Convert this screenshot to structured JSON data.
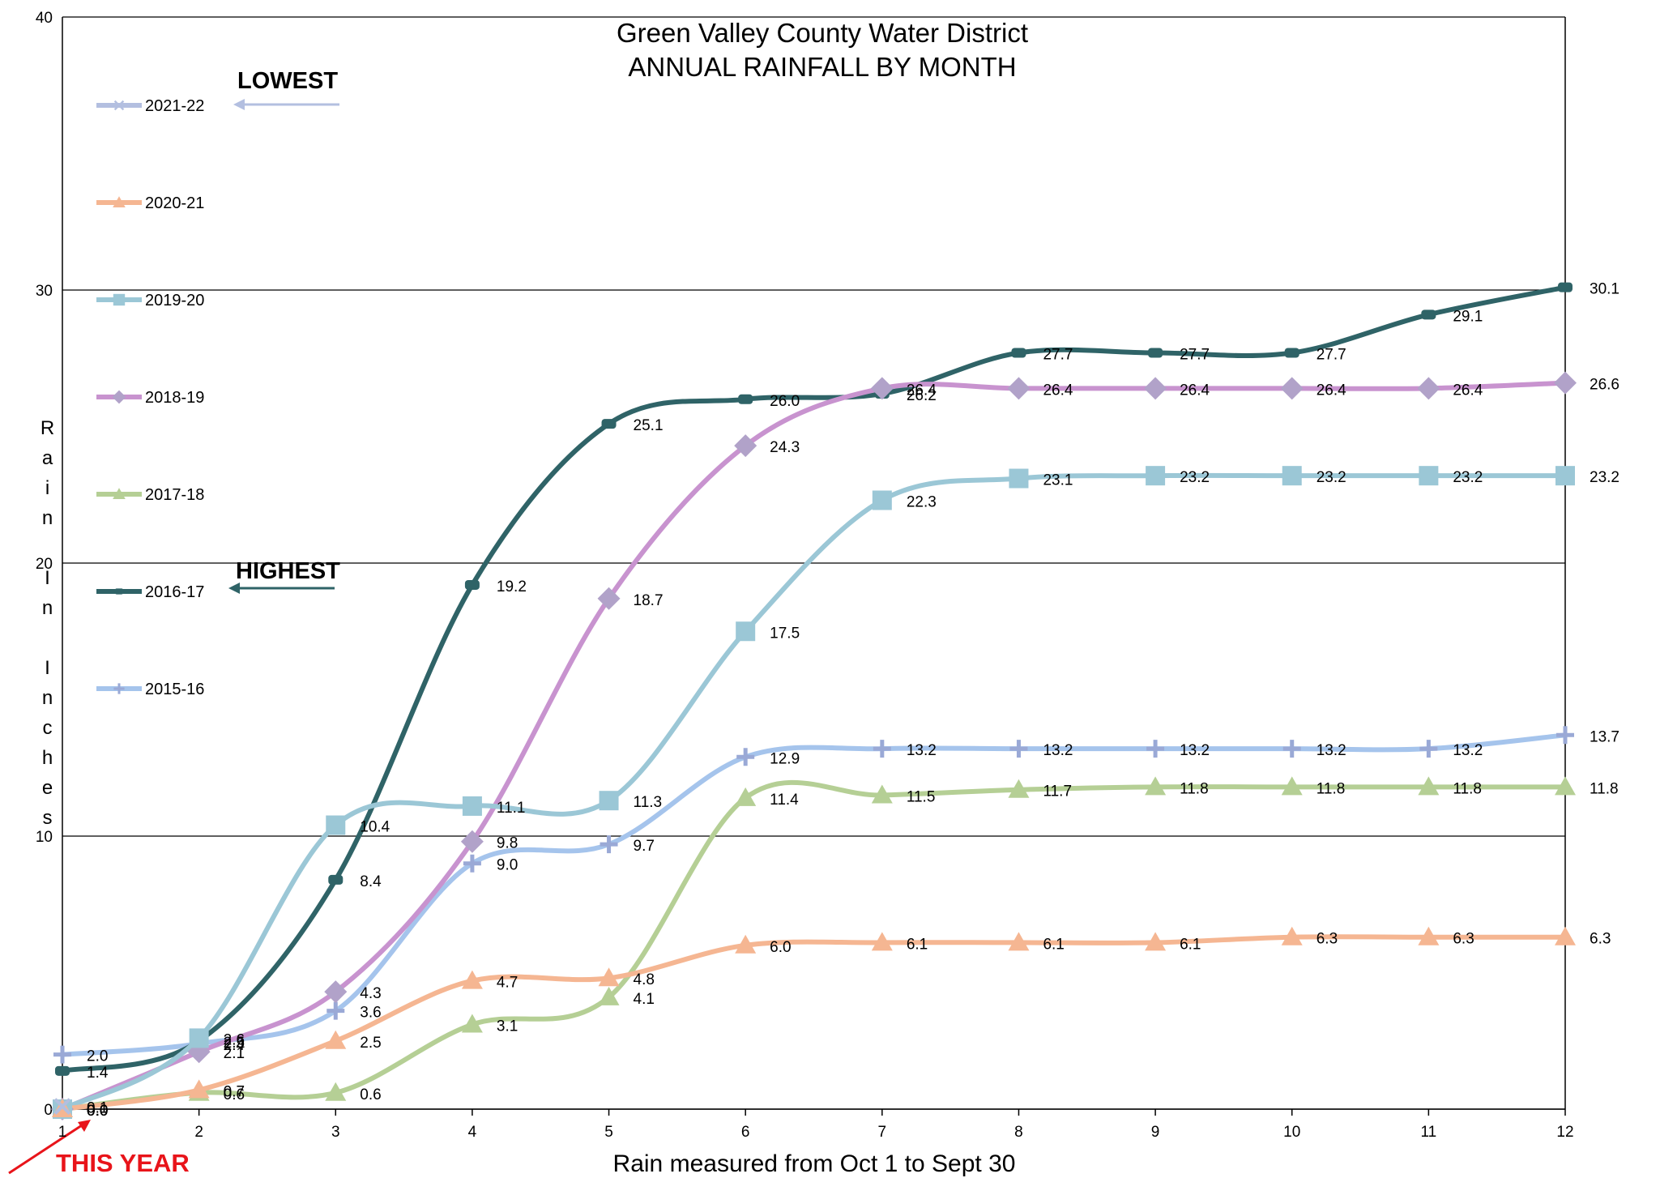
{
  "chart_data": {
    "type": "line",
    "title": [
      "Green Valley County Water District",
      "ANNUAL RAINFALL BY MONTH"
    ],
    "x_label": "Rain measured from Oct 1 to Sept 30",
    "y_label": "Rain In Inches",
    "x": [
      1,
      2,
      3,
      4,
      5,
      6,
      7,
      8,
      9,
      10,
      11,
      12
    ],
    "xlim": [
      1,
      12
    ],
    "xticks": [
      1,
      2,
      3,
      4,
      5,
      6,
      7,
      8,
      9,
      10,
      11,
      12
    ],
    "ylim": [
      0,
      40
    ],
    "yticks": [
      0,
      10,
      20,
      30,
      40
    ],
    "grid": true,
    "smooth": true,
    "annotations": [
      "LOWEST",
      "HIGHEST",
      "THIS YEAR"
    ],
    "series": [
      {
        "name": "2021-22",
        "color": "#b3bfe0",
        "marker": "x",
        "values": [
          0.1,
          null,
          null,
          null,
          null,
          null,
          null,
          null,
          null,
          null,
          null,
          null
        ],
        "value_labels": [
          "0.1",
          null,
          null,
          null,
          null,
          null,
          null,
          null,
          null,
          null,
          null,
          null
        ]
      },
      {
        "name": "2020-21",
        "color": "#f5b692",
        "marker": "triangle",
        "values": [
          0.0,
          0.7,
          2.5,
          4.7,
          4.8,
          6.0,
          6.1,
          6.1,
          6.1,
          6.3,
          6.3,
          6.3
        ],
        "value_labels": [
          "0.0",
          "0.7",
          "2.5",
          "4.7",
          "4.8",
          "6.0",
          "6.1",
          "6.1",
          "6.1",
          "6.3",
          "6.3",
          "6.3"
        ]
      },
      {
        "name": "2019-20",
        "color": "#9bc7d6",
        "marker": "square",
        "values": [
          0.0,
          2.6,
          10.4,
          11.1,
          11.3,
          17.5,
          22.3,
          23.1,
          23.2,
          23.2,
          23.2,
          23.2
        ],
        "value_labels": [
          "0.0",
          "2.6",
          "10.4",
          "11.1",
          "11.3",
          "17.5",
          "22.3",
          "23.1",
          "23.2",
          "23.2",
          "23.2",
          "23.2"
        ]
      },
      {
        "name": "2018-19",
        "color": "#c893cf",
        "marker": "diamond",
        "values": [
          0.0,
          2.1,
          4.3,
          9.8,
          18.7,
          24.3,
          26.4,
          26.4,
          26.4,
          26.4,
          26.4,
          26.6
        ],
        "value_labels": [
          "0.0",
          "2.1",
          "4.3",
          "9.8",
          "18.7",
          "24.3",
          "26.4",
          "26.4",
          "26.4",
          "26.4",
          "26.4",
          "26.6"
        ]
      },
      {
        "name": "2017-18",
        "color": "#b5cf95",
        "marker": "triangle",
        "values": [
          0.0,
          0.6,
          0.6,
          3.1,
          4.1,
          11.4,
          11.5,
          11.7,
          11.8,
          11.8,
          11.8,
          11.8
        ],
        "value_labels": [
          "0.0",
          "0.6",
          "0.6",
          "3.1",
          "4.1",
          "11.4",
          "11.5",
          "11.7",
          "11.8",
          "11.8",
          "11.8",
          "11.8"
        ]
      },
      {
        "name": "2016-17",
        "color": "#2f6367",
        "marker": "pill",
        "values": [
          1.4,
          2.5,
          8.4,
          19.2,
          25.1,
          26.0,
          26.2,
          27.7,
          27.7,
          27.7,
          29.1,
          30.1
        ],
        "value_labels": [
          "1.4",
          "2.5",
          "8.4",
          "19.2",
          "25.1",
          "26.0",
          "26.2",
          "27.7",
          "27.7",
          "27.7",
          "29.1",
          "30.1"
        ]
      },
      {
        "name": "2015-16",
        "color": "#a5c4ec",
        "marker": "plus",
        "values": [
          2.0,
          2.4,
          3.6,
          9.0,
          9.7,
          12.9,
          13.2,
          13.2,
          13.2,
          13.2,
          13.2,
          13.7
        ],
        "value_labels": [
          "2.0",
          "2.4",
          "3.6",
          "9.0",
          "9.7",
          "12.9",
          "13.2",
          "13.2",
          "13.2",
          "13.2",
          "13.2",
          "13.7"
        ]
      }
    ]
  }
}
